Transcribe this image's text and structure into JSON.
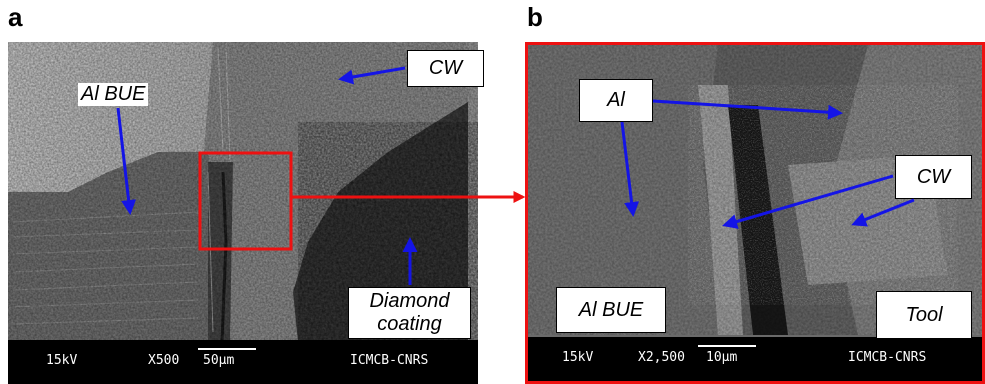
{
  "panel_a": {
    "letter": "a",
    "labels": {
      "al_bue": "Al BUE",
      "cw": "CW",
      "diamond_line1": "Diamond",
      "diamond_line2": "coating"
    },
    "databar": {
      "voltage": "15kV",
      "magnification": "X500",
      "scale": "50µm",
      "lab": "ICMCB-CNRS"
    }
  },
  "panel_b": {
    "letter": "b",
    "labels": {
      "al": "Al",
      "cw": "CW",
      "al_bue": "Al BUE",
      "tool": "Tool"
    },
    "databar": {
      "voltage": "15kV",
      "magnification": "X2,500",
      "scale": "10µm",
      "lab": "ICMCB-CNRS"
    }
  },
  "colors": {
    "arrow_blue": "#1414e6",
    "frame_red": "#ee1111"
  }
}
